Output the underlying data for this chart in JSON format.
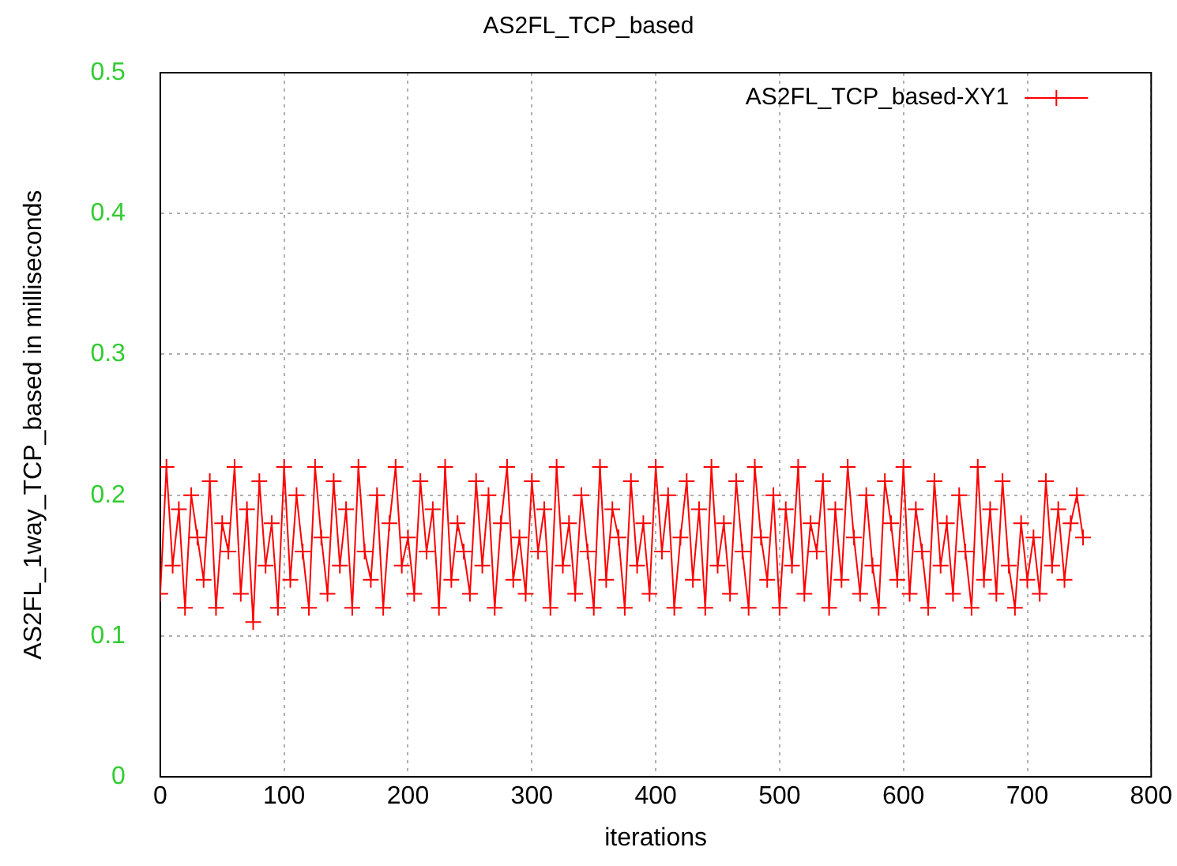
{
  "chart_data": {
    "type": "line",
    "title": "AS2FL_TCP_based",
    "xlabel": "iterations",
    "ylabel": "AS2FL_1way_TCP_based in milliseconds",
    "x": [
      0,
      5,
      10,
      15,
      20,
      25,
      30,
      35,
      40,
      45,
      50,
      55,
      60,
      65,
      70,
      75,
      80,
      85,
      90,
      95,
      100,
      105,
      110,
      115,
      120,
      125,
      130,
      135,
      140,
      145,
      150,
      155,
      160,
      165,
      170,
      175,
      180,
      185,
      190,
      195,
      200,
      205,
      210,
      215,
      220,
      225,
      230,
      235,
      240,
      245,
      250,
      255,
      260,
      265,
      270,
      275,
      280,
      285,
      290,
      295,
      300,
      305,
      310,
      315,
      320,
      325,
      330,
      335,
      340,
      345,
      350,
      355,
      360,
      365,
      370,
      375,
      380,
      385,
      390,
      395,
      400,
      405,
      410,
      415,
      420,
      425,
      430,
      435,
      440,
      445,
      450,
      455,
      460,
      465,
      470,
      475,
      480,
      485,
      490,
      495,
      500,
      505,
      510,
      515,
      520,
      525,
      530,
      535,
      540,
      545,
      550,
      555,
      560,
      565,
      570,
      575,
      580,
      585,
      590,
      595,
      600,
      605,
      610,
      615,
      620,
      625,
      630,
      635,
      640,
      645,
      650,
      655,
      660,
      665,
      670,
      675,
      680,
      685,
      690,
      695,
      700,
      705,
      710,
      715,
      720,
      725,
      730,
      735,
      740,
      745
    ],
    "series": [
      {
        "name": "AS2FL_TCP_based-XY1",
        "color": "#ff0000",
        "values": [
          0.13,
          0.22,
          0.15,
          0.19,
          0.12,
          0.2,
          0.17,
          0.14,
          0.21,
          0.12,
          0.18,
          0.16,
          0.22,
          0.13,
          0.19,
          0.11,
          0.21,
          0.15,
          0.18,
          0.12,
          0.22,
          0.14,
          0.2,
          0.16,
          0.12,
          0.22,
          0.17,
          0.13,
          0.21,
          0.15,
          0.19,
          0.12,
          0.22,
          0.16,
          0.14,
          0.2,
          0.12,
          0.18,
          0.22,
          0.15,
          0.17,
          0.13,
          0.21,
          0.16,
          0.19,
          0.12,
          0.22,
          0.14,
          0.18,
          0.16,
          0.13,
          0.21,
          0.15,
          0.2,
          0.12,
          0.18,
          0.22,
          0.14,
          0.17,
          0.13,
          0.21,
          0.16,
          0.19,
          0.12,
          0.22,
          0.15,
          0.18,
          0.13,
          0.2,
          0.16,
          0.12,
          0.22,
          0.14,
          0.19,
          0.17,
          0.12,
          0.21,
          0.15,
          0.18,
          0.13,
          0.22,
          0.16,
          0.2,
          0.12,
          0.17,
          0.21,
          0.14,
          0.19,
          0.12,
          0.22,
          0.15,
          0.18,
          0.13,
          0.21,
          0.16,
          0.12,
          0.22,
          0.17,
          0.14,
          0.2,
          0.12,
          0.19,
          0.15,
          0.22,
          0.13,
          0.18,
          0.16,
          0.21,
          0.12,
          0.19,
          0.14,
          0.22,
          0.17,
          0.13,
          0.2,
          0.15,
          0.12,
          0.21,
          0.18,
          0.14,
          0.22,
          0.13,
          0.19,
          0.16,
          0.12,
          0.21,
          0.15,
          0.18,
          0.13,
          0.2,
          0.16,
          0.12,
          0.22,
          0.14,
          0.19,
          0.13,
          0.21,
          0.15,
          0.12,
          0.18,
          0.14,
          0.17,
          0.13,
          0.21,
          0.15,
          0.19,
          0.14,
          0.18,
          0.2,
          0.17
        ]
      }
    ],
    "xlim": [
      0,
      800
    ],
    "xticks": [
      0,
      100,
      200,
      300,
      400,
      500,
      600,
      700,
      800
    ],
    "ylim": [
      0,
      0.5
    ],
    "yticks": [
      0,
      0.1,
      0.2,
      0.3,
      0.4,
      0.5
    ],
    "grid": true,
    "legend": "top right",
    "marker": "cross",
    "line_style": "solid"
  }
}
